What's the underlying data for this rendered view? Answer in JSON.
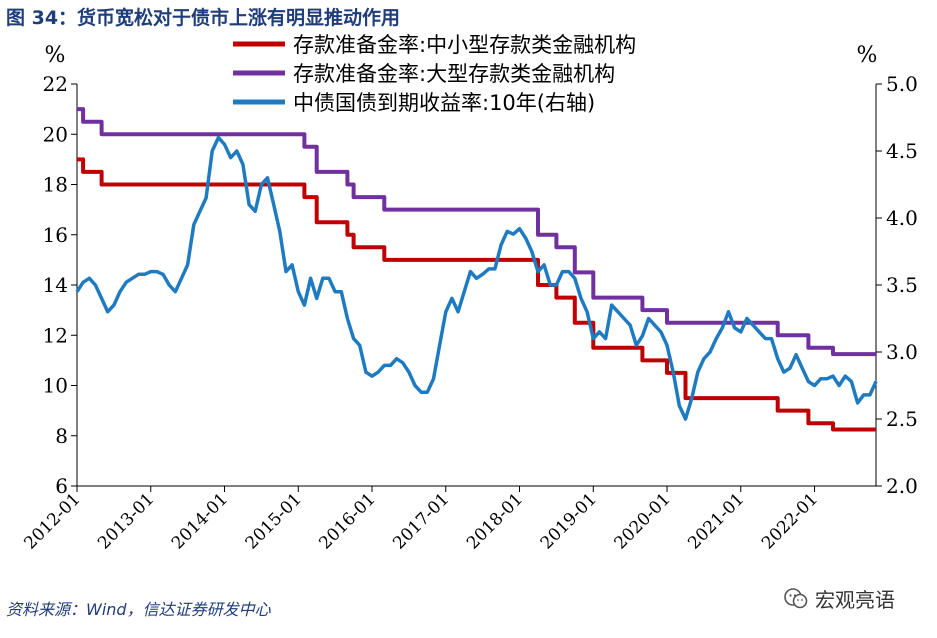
{
  "title": "图 34：货币宽松对于债市上涨有明显推动作用",
  "source": "资料来源：Wind，信达证券研发中心",
  "watermark": "宏观亮语",
  "colors": {
    "rrr_small": "#c00000",
    "rrr_large": "#7030a0",
    "bond_10y": "#1f7bc1",
    "title": "#1f3d7a"
  },
  "chart_data": {
    "type": "line",
    "title": "图 34：货币宽松对于债市上涨有明显推动作用",
    "y_left": {
      "unit": "%",
      "range": [
        6,
        22
      ],
      "ticks": [
        "6",
        "8",
        "10",
        "12",
        "14",
        "16",
        "18",
        "20",
        "22"
      ]
    },
    "y_right": {
      "unit": "%",
      "range": [
        2.0,
        5.0
      ],
      "ticks": [
        "2.0",
        "2.5",
        "3.0",
        "3.5",
        "4.0",
        "4.5",
        "5.0"
      ]
    },
    "x_range": [
      "2012-01",
      "2022-11"
    ],
    "x_ticks": [
      "2012-01",
      "2013-01",
      "2014-01",
      "2015-01",
      "2016-01",
      "2017-01",
      "2018-01",
      "2019-01",
      "2020-01",
      "2021-01",
      "2022-01"
    ],
    "legend_position": "top-right",
    "grid": false,
    "series": [
      {
        "name": "存款准备金率:中小型存款类金融机构",
        "axis": "left",
        "color_key": "rrr_small",
        "step": true,
        "points": [
          [
            "2012-01",
            19.0
          ],
          [
            "2012-02",
            18.5
          ],
          [
            "2012-05",
            18.0
          ],
          [
            "2015-02",
            17.5
          ],
          [
            "2015-04",
            16.5
          ],
          [
            "2015-09",
            16.0
          ],
          [
            "2015-10",
            15.5
          ],
          [
            "2016-03",
            15.0
          ],
          [
            "2018-04",
            14.0
          ],
          [
            "2018-07",
            13.5
          ],
          [
            "2018-10",
            12.5
          ],
          [
            "2019-01",
            11.5
          ],
          [
            "2019-09",
            11.0
          ],
          [
            "2020-01",
            10.5
          ],
          [
            "2020-04",
            9.5
          ],
          [
            "2021-07",
            9.0
          ],
          [
            "2021-12",
            8.5
          ],
          [
            "2022-04",
            8.25
          ],
          [
            "2022-11",
            8.25
          ]
        ]
      },
      {
        "name": "存款准备金率:大型存款类金融机构",
        "axis": "left",
        "color_key": "rrr_large",
        "step": true,
        "points": [
          [
            "2012-01",
            21.0
          ],
          [
            "2012-02",
            20.5
          ],
          [
            "2012-05",
            20.0
          ],
          [
            "2015-02",
            19.5
          ],
          [
            "2015-04",
            18.5
          ],
          [
            "2015-09",
            18.0
          ],
          [
            "2015-10",
            17.5
          ],
          [
            "2016-03",
            17.0
          ],
          [
            "2018-04",
            16.0
          ],
          [
            "2018-07",
            15.5
          ],
          [
            "2018-10",
            14.5
          ],
          [
            "2019-01",
            13.5
          ],
          [
            "2019-09",
            13.0
          ],
          [
            "2020-01",
            12.5
          ],
          [
            "2021-07",
            12.0
          ],
          [
            "2021-12",
            11.5
          ],
          [
            "2022-04",
            11.25
          ],
          [
            "2022-11",
            11.25
          ]
        ]
      },
      {
        "name": "中债国债到期收益率:10年(右轴)",
        "axis": "right",
        "color_key": "bond_10y",
        "step": false,
        "points": [
          [
            "2012-01",
            3.45
          ],
          [
            "2012-02",
            3.52
          ],
          [
            "2012-03",
            3.55
          ],
          [
            "2012-04",
            3.5
          ],
          [
            "2012-05",
            3.4
          ],
          [
            "2012-06",
            3.3
          ],
          [
            "2012-07",
            3.35
          ],
          [
            "2012-08",
            3.45
          ],
          [
            "2012-09",
            3.52
          ],
          [
            "2012-10",
            3.55
          ],
          [
            "2012-11",
            3.58
          ],
          [
            "2012-12",
            3.58
          ],
          [
            "2013-01",
            3.6
          ],
          [
            "2013-02",
            3.6
          ],
          [
            "2013-03",
            3.58
          ],
          [
            "2013-04",
            3.5
          ],
          [
            "2013-05",
            3.45
          ],
          [
            "2013-06",
            3.55
          ],
          [
            "2013-07",
            3.65
          ],
          [
            "2013-08",
            3.95
          ],
          [
            "2013-09",
            4.05
          ],
          [
            "2013-10",
            4.15
          ],
          [
            "2013-11",
            4.5
          ],
          [
            "2013-12",
            4.6
          ],
          [
            "2014-01",
            4.55
          ],
          [
            "2014-02",
            4.45
          ],
          [
            "2014-03",
            4.5
          ],
          [
            "2014-04",
            4.4
          ],
          [
            "2014-05",
            4.1
          ],
          [
            "2014-06",
            4.05
          ],
          [
            "2014-07",
            4.25
          ],
          [
            "2014-08",
            4.3
          ],
          [
            "2014-09",
            4.1
          ],
          [
            "2014-10",
            3.9
          ],
          [
            "2014-11",
            3.6
          ],
          [
            "2014-12",
            3.65
          ],
          [
            "2015-01",
            3.45
          ],
          [
            "2015-02",
            3.35
          ],
          [
            "2015-03",
            3.55
          ],
          [
            "2015-04",
            3.4
          ],
          [
            "2015-05",
            3.55
          ],
          [
            "2015-06",
            3.55
          ],
          [
            "2015-07",
            3.45
          ],
          [
            "2015-08",
            3.45
          ],
          [
            "2015-09",
            3.25
          ],
          [
            "2015-10",
            3.1
          ],
          [
            "2015-11",
            3.05
          ],
          [
            "2015-12",
            2.85
          ],
          [
            "2016-01",
            2.82
          ],
          [
            "2016-02",
            2.85
          ],
          [
            "2016-03",
            2.9
          ],
          [
            "2016-04",
            2.9
          ],
          [
            "2016-05",
            2.95
          ],
          [
            "2016-06",
            2.92
          ],
          [
            "2016-07",
            2.85
          ],
          [
            "2016-08",
            2.75
          ],
          [
            "2016-09",
            2.7
          ],
          [
            "2016-10",
            2.7
          ],
          [
            "2016-11",
            2.8
          ],
          [
            "2016-12",
            3.05
          ],
          [
            "2017-01",
            3.3
          ],
          [
            "2017-02",
            3.4
          ],
          [
            "2017-03",
            3.3
          ],
          [
            "2017-04",
            3.45
          ],
          [
            "2017-05",
            3.6
          ],
          [
            "2017-06",
            3.55
          ],
          [
            "2017-07",
            3.58
          ],
          [
            "2017-08",
            3.62
          ],
          [
            "2017-09",
            3.62
          ],
          [
            "2017-10",
            3.8
          ],
          [
            "2017-11",
            3.9
          ],
          [
            "2017-12",
            3.88
          ],
          [
            "2018-01",
            3.92
          ],
          [
            "2018-02",
            3.85
          ],
          [
            "2018-03",
            3.75
          ],
          [
            "2018-04",
            3.6
          ],
          [
            "2018-05",
            3.65
          ],
          [
            "2018-06",
            3.5
          ],
          [
            "2018-07",
            3.5
          ],
          [
            "2018-08",
            3.6
          ],
          [
            "2018-09",
            3.6
          ],
          [
            "2018-10",
            3.55
          ],
          [
            "2018-11",
            3.4
          ],
          [
            "2018-12",
            3.3
          ],
          [
            "2019-01",
            3.1
          ],
          [
            "2019-02",
            3.15
          ],
          [
            "2019-03",
            3.1
          ],
          [
            "2019-04",
            3.35
          ],
          [
            "2019-05",
            3.3
          ],
          [
            "2019-06",
            3.25
          ],
          [
            "2019-07",
            3.2
          ],
          [
            "2019-08",
            3.05
          ],
          [
            "2019-09",
            3.12
          ],
          [
            "2019-10",
            3.25
          ],
          [
            "2019-11",
            3.2
          ],
          [
            "2019-12",
            3.15
          ],
          [
            "2020-01",
            3.05
          ],
          [
            "2020-02",
            2.85
          ],
          [
            "2020-03",
            2.6
          ],
          [
            "2020-04",
            2.5
          ],
          [
            "2020-05",
            2.65
          ],
          [
            "2020-06",
            2.85
          ],
          [
            "2020-07",
            2.95
          ],
          [
            "2020-08",
            3.0
          ],
          [
            "2020-09",
            3.1
          ],
          [
            "2020-10",
            3.18
          ],
          [
            "2020-11",
            3.3
          ],
          [
            "2020-12",
            3.18
          ],
          [
            "2021-01",
            3.15
          ],
          [
            "2021-02",
            3.25
          ],
          [
            "2021-03",
            3.2
          ],
          [
            "2021-04",
            3.15
          ],
          [
            "2021-05",
            3.1
          ],
          [
            "2021-06",
            3.1
          ],
          [
            "2021-07",
            2.95
          ],
          [
            "2021-08",
            2.85
          ],
          [
            "2021-09",
            2.88
          ],
          [
            "2021-10",
            2.98
          ],
          [
            "2021-11",
            2.88
          ],
          [
            "2021-12",
            2.78
          ],
          [
            "2022-01",
            2.75
          ],
          [
            "2022-02",
            2.8
          ],
          [
            "2022-03",
            2.8
          ],
          [
            "2022-04",
            2.82
          ],
          [
            "2022-05",
            2.75
          ],
          [
            "2022-06",
            2.82
          ],
          [
            "2022-07",
            2.78
          ],
          [
            "2022-08",
            2.62
          ],
          [
            "2022-09",
            2.68
          ],
          [
            "2022-10",
            2.68
          ],
          [
            "2022-11",
            2.78
          ]
        ]
      }
    ]
  }
}
